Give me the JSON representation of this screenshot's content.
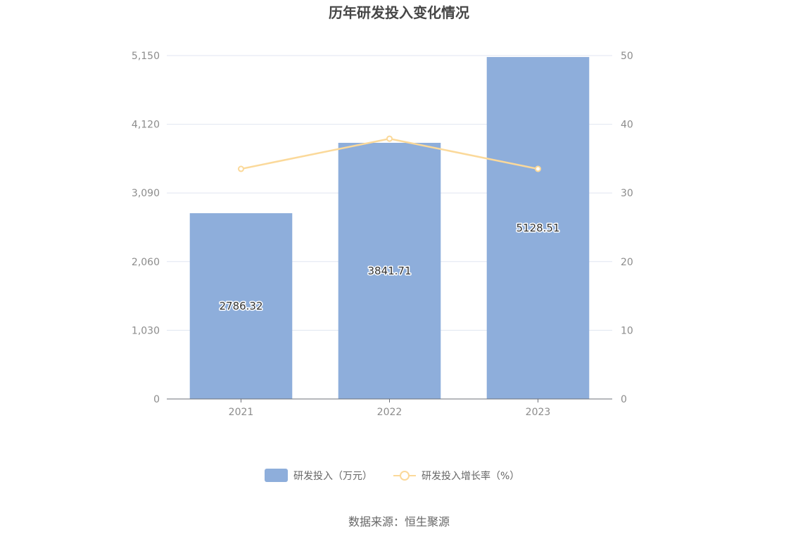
{
  "chart_data": {
    "type": "bar",
    "title": "历年研发投入变化情况",
    "categories": [
      "2021",
      "2022",
      "2023"
    ],
    "y_left": {
      "ticks": [
        "0",
        "1,030",
        "2,060",
        "3,090",
        "4,120",
        "5,150"
      ],
      "range": [
        0,
        5150
      ]
    },
    "y_right": {
      "ticks": [
        "0",
        "10",
        "20",
        "30",
        "40",
        "50"
      ],
      "range": [
        0,
        50
      ]
    },
    "series": [
      {
        "name": "研发投入（万元）",
        "type": "bar",
        "axis": "left",
        "color": "#8eaedb",
        "values": [
          2786.32,
          3841.71,
          5128.51
        ],
        "labels": [
          "2786.32",
          "3841.71",
          "5128.51"
        ]
      },
      {
        "name": "研发投入增长率（%）",
        "type": "line",
        "axis": "right",
        "color": "#fbd99a",
        "values": [
          33.5,
          37.9,
          33.5
        ]
      }
    ],
    "grid": true,
    "legend_position": "bottom"
  },
  "source": "数据来源：恒生聚源"
}
